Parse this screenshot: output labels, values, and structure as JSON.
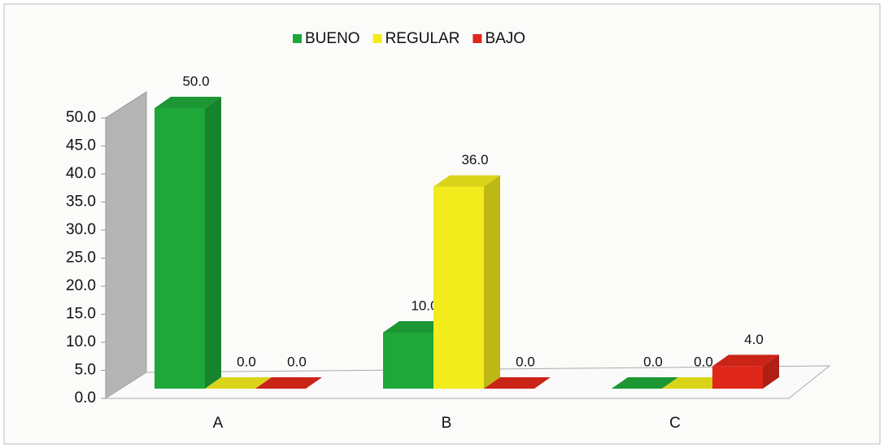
{
  "chart_data": {
    "type": "bar3d",
    "categories": [
      "A",
      "B",
      "C"
    ],
    "series": [
      {
        "name": "BUENO",
        "color": "#1fa83a",
        "values": [
          50,
          10,
          0
        ],
        "value_labels": [
          "50.0",
          "10.0",
          "0.0"
        ]
      },
      {
        "name": "REGULAR",
        "color": "#f2ec1c",
        "values": [
          0,
          36,
          0
        ],
        "value_labels": [
          "0.0",
          "36.0",
          "0.0"
        ]
      },
      {
        "name": "BAJO",
        "color": "#e0281a",
        "values": [
          0,
          0,
          4
        ],
        "value_labels": [
          "0.0",
          "0.0",
          "4.0"
        ]
      }
    ],
    "ylim": [
      0,
      50
    ],
    "yticks": [
      {
        "value": 0,
        "label": "0.0"
      },
      {
        "value": 5,
        "label": "5.0"
      },
      {
        "value": 10,
        "label": "10.0"
      },
      {
        "value": 15,
        "label": "15.0"
      },
      {
        "value": 20,
        "label": "20.0"
      },
      {
        "value": 25,
        "label": "25.0"
      },
      {
        "value": 30,
        "label": "30.0"
      },
      {
        "value": 35,
        "label": "35.0"
      },
      {
        "value": 40,
        "label": "40.0"
      },
      {
        "value": 45,
        "label": "45.0"
      },
      {
        "value": 50,
        "label": "50.0"
      }
    ],
    "legend": "top"
  }
}
